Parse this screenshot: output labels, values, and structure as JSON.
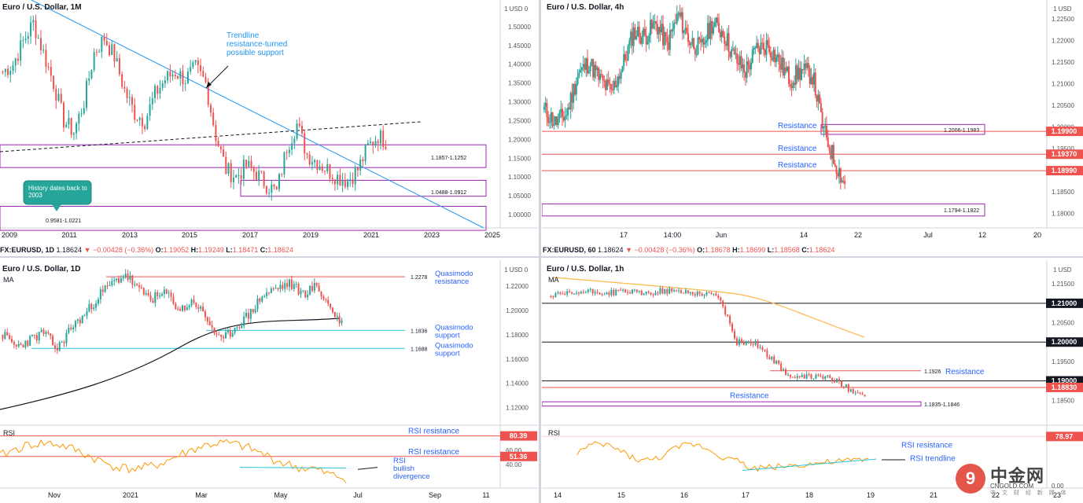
{
  "panels": {
    "monthly": {
      "title": "Euro / U.S. Dollar, 1M",
      "status": {
        "symbol": "FX:EURUSD, 1D",
        "last": "1.18624",
        "change": "−0.00428 (−0.36%)",
        "o_label": "O:",
        "o": "1.19052",
        "h_label": "H:",
        "h": "1.19249",
        "l_label": "L:",
        "l": "1.18471",
        "c_label": "C:",
        "c": "1.18624"
      },
      "currency_label": "1 USD 0",
      "annotation_trend": "Trendline resistance-turned possible support",
      "callout": "History dates back to 2003",
      "zone_labels": [
        "1.1857-1.1252",
        "1.0488-1.0912",
        "0.9581-1.0221"
      ]
    },
    "h4": {
      "title": "Euro / U.S. Dollar, 4h",
      "status": {
        "symbol": "FX:EURUSD, 60",
        "last": "1.18624",
        "change": "−0.00428 (−0.36%)",
        "o_label": "O:",
        "o": "1.18678",
        "h_label": "H:",
        "h": "1.18699",
        "l_label": "L:",
        "l": "1.18568",
        "c_label": "C:",
        "c": "1.18624"
      },
      "currency_label": "1 USD",
      "resistance_labels": [
        "Resistance",
        "Resistance",
        "Resistance"
      ],
      "zone_labels": [
        "1.2006-1.1983",
        "1.1794-1.1822"
      ]
    },
    "daily": {
      "title": "Euro / U.S. Dollar, 1D",
      "ma_label": "MA",
      "rsi_label": "RSI",
      "currency_label": "1 USD 0",
      "levels": [
        {
          "value": "1.2278",
          "label": "Quasimodo resistance"
        },
        {
          "value": "1.1836",
          "label": "Quasimodo support"
        },
        {
          "value": "1.1688",
          "label": "Quasimodo support"
        }
      ],
      "rsi_annotations": [
        "RSI resistance",
        "RSI resistance",
        "RSI bullish divergence"
      ],
      "rsi_badges": [
        "80.39",
        "51.36"
      ]
    },
    "hourly": {
      "title": "Euro / U.S. Dollar, 1h",
      "ma_label": "MA",
      "rsi_label": "RSI",
      "currency_label": "1 USD",
      "level_value": "1.1926",
      "level_label": "Resistance",
      "zone_label": "Resistance",
      "zone_value": "1.1835-1.1846",
      "rsi_annotations": [
        "RSI resistance",
        "RSI trendline"
      ],
      "rsi_badges": [
        "78.97"
      ],
      "rsi_zero": "0.00"
    }
  },
  "watermark": {
    "logo_char": "9",
    "name": "中金网",
    "site": "CNGOLD.COM",
    "tagline": "中 文 财 经 新 媒 体"
  },
  "colors": {
    "up": "#26a69a",
    "down": "#ef5350",
    "zone": "#9c27b0",
    "res_line": "#ef5350",
    "blue_text": "#2962ff",
    "trend": "#2196f3",
    "ma": "#131722",
    "rsi": "#ff9800",
    "black_level": "#131722"
  },
  "chart_data": [
    {
      "type": "candlestick",
      "title": "Euro / U.S. Dollar, 1M",
      "x_ticks": [
        "2009",
        "2011",
        "2013",
        "2015",
        "2017",
        "2019",
        "2021",
        "2023",
        "2025"
      ],
      "y_ticks": [
        "1.50000",
        "1.45000",
        "1.40000",
        "1.35000",
        "1.30000",
        "1.25000",
        "1.20000",
        "1.15000",
        "1.10000",
        "1.05000",
        "1.00000"
      ],
      "ylim": [
        0.975,
        1.55
      ],
      "price_path": [
        1.38,
        1.4,
        1.46,
        1.51,
        1.43,
        1.35,
        1.25,
        1.22,
        1.3,
        1.43,
        1.47,
        1.42,
        1.33,
        1.27,
        1.25,
        1.32,
        1.36,
        1.38,
        1.36,
        1.39,
        1.35,
        1.21,
        1.12,
        1.1,
        1.13,
        1.11,
        1.08,
        1.06,
        1.18,
        1.24,
        1.16,
        1.14,
        1.12,
        1.1,
        1.09,
        1.12,
        1.18,
        1.21,
        1.19
      ],
      "zones": [
        [
          1.1252,
          1.1857
        ],
        [
          1.0488,
          1.0912
        ],
        [
          0.9581,
          1.0221
        ]
      ]
    },
    {
      "type": "candlestick",
      "title": "Euro / U.S. Dollar, 4h",
      "x_ticks": [
        "17",
        "14:00",
        "Jun",
        "14",
        "22",
        "Jul",
        "12",
        "20"
      ],
      "y_ticks": [
        "1.22500",
        "1.22000",
        "1.21500",
        "1.21000",
        "1.20500",
        "1.20000",
        "1.19500",
        "1.19000",
        "1.18500",
        "1.18000"
      ],
      "ylim": [
        1.177,
        1.2285
      ],
      "price_path": [
        1.204,
        1.201,
        1.203,
        1.212,
        1.215,
        1.211,
        1.208,
        1.214,
        1.222,
        1.221,
        1.224,
        1.219,
        1.226,
        1.22,
        1.218,
        1.224,
        1.222,
        1.216,
        1.213,
        1.218,
        1.219,
        1.215,
        1.211,
        1.213,
        1.212,
        1.199,
        1.192,
        1.186
      ],
      "levels": [
        1.199,
        1.1937,
        1.1899
      ],
      "zones": [
        [
          1.1983,
          1.2006
        ],
        [
          1.1794,
          1.1822
        ]
      ]
    },
    {
      "type": "candlestick",
      "title": "Euro / U.S. Dollar, 1D",
      "x_ticks": [
        "Nov",
        "2021",
        "Mar",
        "May",
        "Jul",
        "Sep",
        "11"
      ],
      "y_ticks": [
        "1.22000",
        "1.20000",
        "1.18000",
        "1.16000",
        "1.14000",
        "1.12000"
      ],
      "ylim": [
        1.112,
        1.235
      ],
      "price_path": [
        1.18,
        1.17,
        1.176,
        1.182,
        1.168,
        1.186,
        1.196,
        1.212,
        1.222,
        1.23,
        1.216,
        1.21,
        1.214,
        1.2,
        1.208,
        1.192,
        1.174,
        1.186,
        1.196,
        1.212,
        1.218,
        1.222,
        1.214,
        1.22,
        1.202,
        1.186
      ],
      "levels": [
        1.2278,
        1.1836,
        1.1688
      ],
      "rsi_ticks": [
        "60.00",
        "40.00"
      ],
      "rsi_levels": [
        80.39,
        51.36
      ]
    },
    {
      "type": "candlestick",
      "title": "Euro / U.S. Dollar, 1h",
      "x_ticks": [
        "14",
        "15",
        "16",
        "17",
        "18",
        "19",
        "21",
        "22",
        "23"
      ],
      "y_ticks": [
        "1.21500",
        "1.21000",
        "1.20500",
        "1.20000",
        "1.19500",
        "1.19000",
        "1.18500"
      ],
      "ylim": [
        1.181,
        1.2195
      ],
      "price_path": [
        1.2118,
        1.2124,
        1.213,
        1.2126,
        1.2132,
        1.2124,
        1.2132,
        1.213,
        1.2126,
        1.212,
        1.2,
        1.1998,
        1.195,
        1.1905,
        1.1912,
        1.1908,
        1.188,
        1.1862
      ],
      "levels": [
        1.21,
        1.2,
        1.1926,
        1.19,
        1.1883
      ],
      "zones": [
        [
          1.1835,
          1.1846
        ]
      ],
      "rsi_levels": [
        78.97
      ]
    }
  ]
}
